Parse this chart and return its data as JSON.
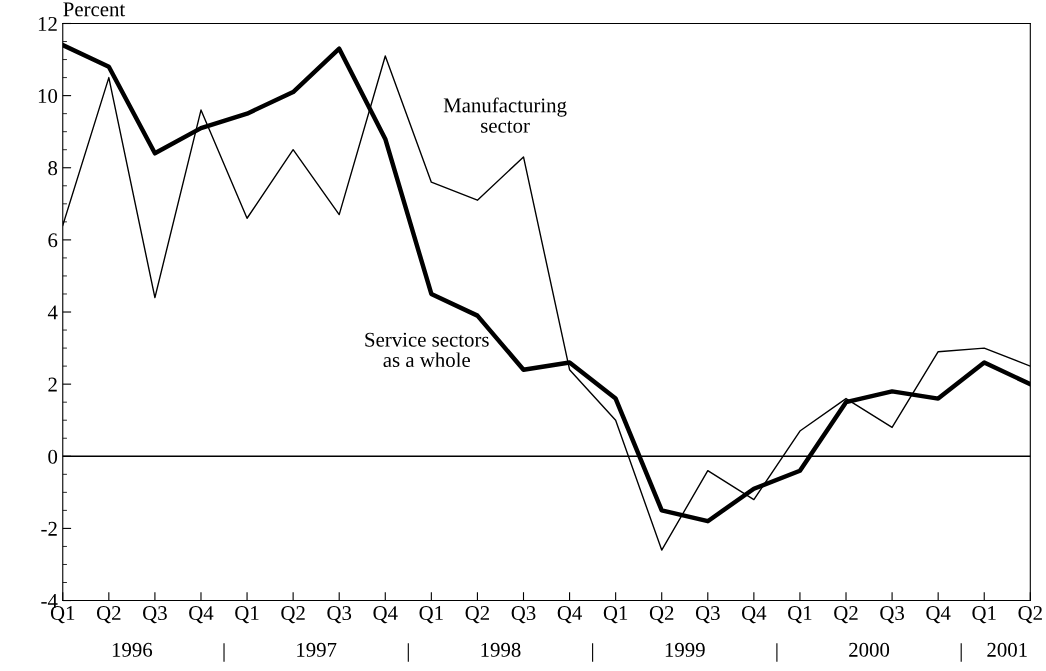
{
  "chart_data": {
    "type": "line",
    "ylabel": "Percent",
    "categories": [
      "Q1",
      "Q2",
      "Q3",
      "Q4",
      "Q1",
      "Q2",
      "Q3",
      "Q4",
      "Q1",
      "Q2",
      "Q3",
      "Q4",
      "Q1",
      "Q2",
      "Q3",
      "Q4",
      "Q1",
      "Q2",
      "Q3",
      "Q4",
      "Q1",
      "Q2"
    ],
    "series": [
      {
        "name": "Manufacturing\nsector",
        "color": "#000000",
        "values": [
          6.4,
          10.5,
          4.4,
          9.6,
          6.6,
          8.5,
          6.7,
          11.1,
          7.6,
          7.1,
          8.3,
          2.4,
          1.0,
          -2.6,
          -0.4,
          -1.2,
          0.7,
          1.6,
          0.8,
          2.9,
          3.0,
          2.5
        ]
      },
      {
        "name": "Service sectors\nas a whole",
        "color": "#000000",
        "values": [
          11.4,
          10.8,
          8.4,
          9.1,
          9.5,
          10.1,
          11.3,
          8.8,
          4.5,
          3.9,
          2.4,
          2.6,
          1.6,
          -1.5,
          -1.8,
          -0.9,
          -0.4,
          1.5,
          1.8,
          1.6,
          2.6,
          2.0
        ]
      }
    ],
    "annotations": [
      "1996",
      "1997",
      "1998",
      "1999",
      "2000",
      "2001"
    ],
    "ylim": [
      -4,
      12
    ],
    "yticks": [
      -4,
      -2,
      0,
      2,
      4,
      6,
      8,
      10,
      12
    ],
    "ref_lines": [
      {
        "axis": "y",
        "value": 0,
        "color": "#000000"
      }
    ],
    "grid": false,
    "legend": false,
    "marker": "none",
    "line_style": "solid"
  }
}
